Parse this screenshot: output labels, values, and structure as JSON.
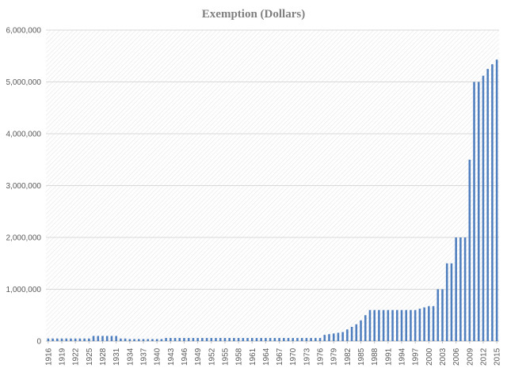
{
  "chart_data": {
    "type": "bar",
    "title": "Exemption (Dollars)",
    "xlabel": "",
    "ylabel": "",
    "ylim": [
      0,
      6000000
    ],
    "yticks": [
      0,
      1000000,
      2000000,
      3000000,
      4000000,
      5000000,
      6000000
    ],
    "ytick_labels": [
      "0",
      "1,000,000",
      "2,000,000",
      "3,000,000",
      "4,000,000",
      "5,000,000",
      "6,000,000"
    ],
    "xtick_labels": [
      "1916",
      "1919",
      "1922",
      "1925",
      "1928",
      "1931",
      "1934",
      "1937",
      "1940",
      "1943",
      "1946",
      "1949",
      "1952",
      "1955",
      "1958",
      "1961",
      "1964",
      "1967",
      "1970",
      "1973",
      "1976",
      "1979",
      "1982",
      "1985",
      "1988",
      "1991",
      "1994",
      "1997",
      "2000",
      "2003",
      "2006",
      "2009",
      "2012",
      "2015"
    ],
    "grid": true,
    "bar_color": "#4f7fbf",
    "categories": [
      1916,
      1917,
      1918,
      1919,
      1920,
      1921,
      1922,
      1923,
      1924,
      1925,
      1926,
      1927,
      1928,
      1929,
      1930,
      1931,
      1932,
      1933,
      1934,
      1935,
      1936,
      1937,
      1938,
      1939,
      1940,
      1941,
      1942,
      1943,
      1944,
      1945,
      1946,
      1947,
      1948,
      1949,
      1950,
      1951,
      1952,
      1953,
      1954,
      1955,
      1956,
      1957,
      1958,
      1959,
      1960,
      1961,
      1962,
      1963,
      1964,
      1965,
      1966,
      1967,
      1968,
      1969,
      1970,
      1971,
      1972,
      1973,
      1974,
      1975,
      1976,
      1977,
      1978,
      1979,
      1980,
      1981,
      1982,
      1983,
      1984,
      1985,
      1986,
      1987,
      1988,
      1989,
      1990,
      1991,
      1992,
      1993,
      1994,
      1995,
      1996,
      1997,
      1998,
      1999,
      2000,
      2001,
      2002,
      2003,
      2004,
      2005,
      2006,
      2007,
      2008,
      2009,
      2010,
      2011,
      2012,
      2013,
      2014,
      2015
    ],
    "values": [
      50000,
      50000,
      50000,
      50000,
      50000,
      50000,
      50000,
      50000,
      50000,
      50000,
      100000,
      100000,
      100000,
      100000,
      100000,
      100000,
      50000,
      50000,
      40000,
      40000,
      40000,
      40000,
      40000,
      40000,
      40000,
      40000,
      60000,
      60000,
      60000,
      60000,
      60000,
      60000,
      60000,
      60000,
      60000,
      60000,
      60000,
      60000,
      60000,
      60000,
      60000,
      60000,
      60000,
      60000,
      60000,
      60000,
      60000,
      60000,
      60000,
      60000,
      60000,
      60000,
      60000,
      60000,
      60000,
      60000,
      60000,
      60000,
      60000,
      60000,
      60000,
      120000,
      134000,
      147000,
      161000,
      175000,
      225000,
      275000,
      325000,
      400000,
      500000,
      600000,
      600000,
      600000,
      600000,
      600000,
      600000,
      600000,
      600000,
      600000,
      600000,
      600000,
      625000,
      650000,
      675000,
      675000,
      1000000,
      1000000,
      1500000,
      1500000,
      2000000,
      2000000,
      2000000,
      3500000,
      5000000,
      5000000,
      5120000,
      5250000,
      5340000,
      5430000
    ]
  }
}
